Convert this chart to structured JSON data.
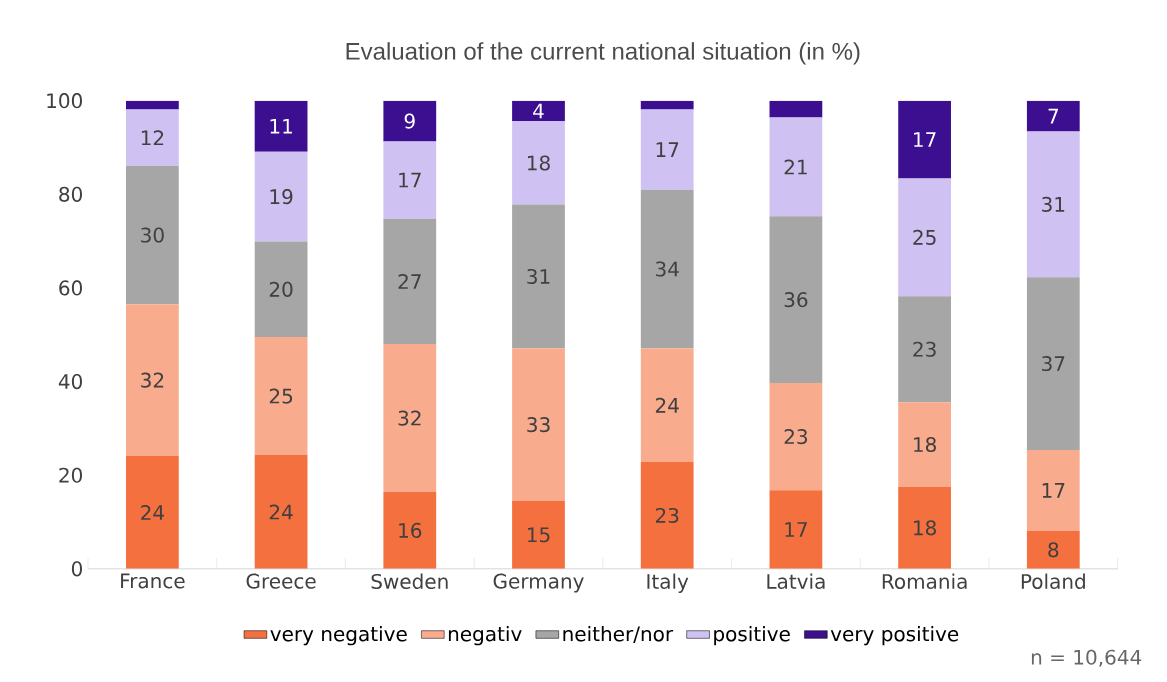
{
  "chart_data": {
    "type": "bar",
    "stacked": true,
    "title": "Evaluation of the current national situation (in %)",
    "categories": [
      "France",
      "Greece",
      "Sweden",
      "Germany",
      "Italy",
      "Latvia",
      "Romania",
      "Poland"
    ],
    "series": [
      {
        "name": "very negative",
        "color": "#f4703f",
        "values": [
          24.1,
          24.3,
          16.4,
          14.5,
          22.8,
          16.8,
          17.5,
          8.1
        ],
        "value_labels": [
          "24",
          "24",
          "16",
          "15",
          "23",
          "17",
          "18",
          "8"
        ]
      },
      {
        "name": "negativ",
        "color": "#f9ab8e",
        "values": [
          32.4,
          25.2,
          31.6,
          32.6,
          24.3,
          22.9,
          18.1,
          17.3
        ],
        "value_labels": [
          "32",
          "25",
          "32",
          "33",
          "24",
          "23",
          "18",
          "17"
        ]
      },
      {
        "name": "neither/nor",
        "color": "#a6a6a6",
        "values": [
          29.6,
          20.4,
          26.8,
          30.7,
          33.9,
          35.6,
          22.6,
          36.9
        ],
        "value_labels": [
          "30",
          "20",
          "27",
          "31",
          "34",
          "36",
          "23",
          "37"
        ]
      },
      {
        "name": "positive",
        "color": "#cfc2f2",
        "values": [
          12.0,
          19.2,
          16.5,
          17.8,
          17.1,
          21.1,
          25.2,
          31.1
        ],
        "value_labels": [
          "12",
          "19",
          "17",
          "18",
          "17",
          "21",
          "25",
          "31"
        ]
      },
      {
        "name": "very positive",
        "color": "#3b0f8f",
        "values": [
          1.9,
          10.9,
          8.7,
          4.4,
          1.9,
          3.6,
          16.6,
          6.6
        ],
        "value_labels": [
          null,
          "11",
          "9",
          "4",
          null,
          null,
          "17",
          "7"
        ]
      }
    ],
    "ylim": [
      0,
      100
    ],
    "yticks": [
      0,
      20,
      40,
      60,
      80,
      100
    ],
    "grid": false,
    "legend": "bottom",
    "annotations": [
      "n = 10,644"
    ]
  }
}
